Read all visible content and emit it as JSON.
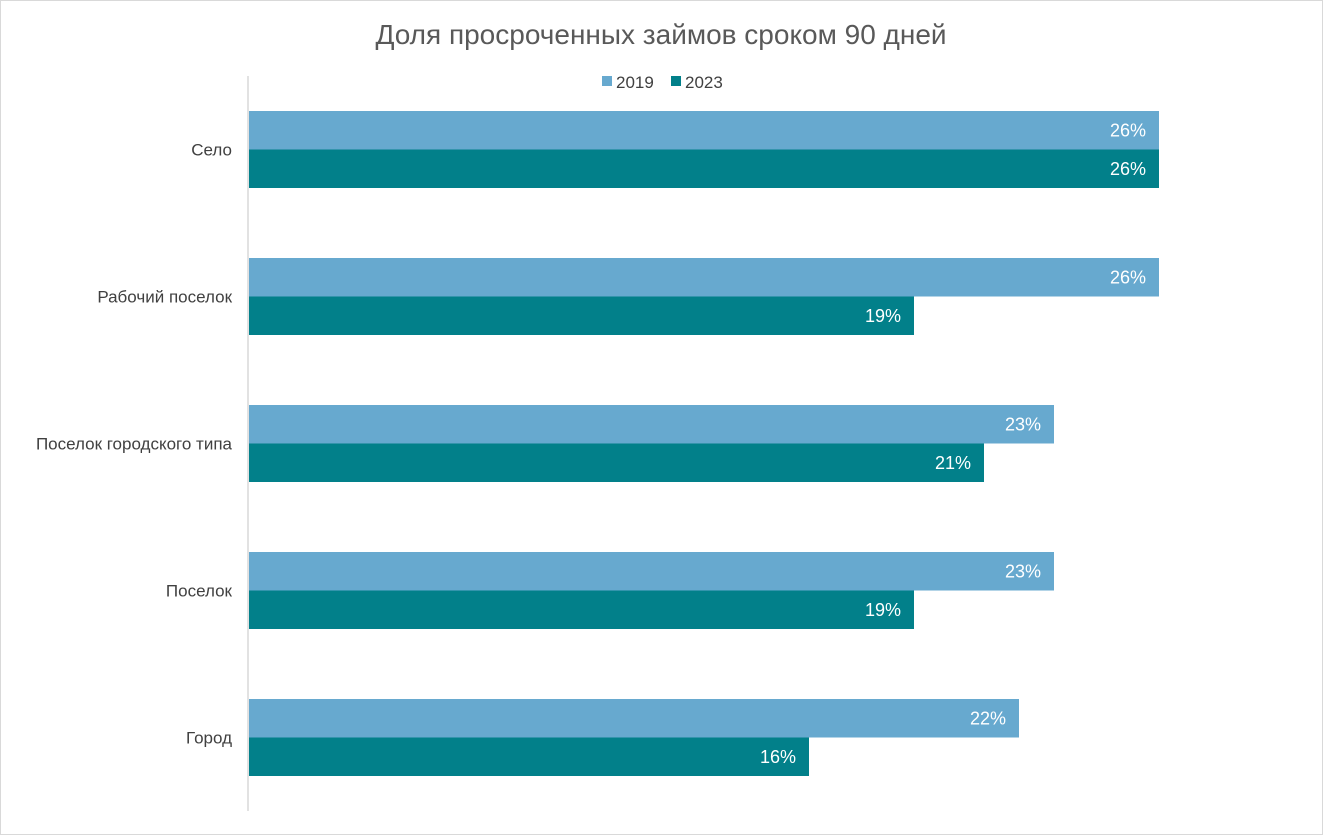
{
  "chart_data": {
    "type": "bar",
    "orientation": "horizontal",
    "title": "Доля просроченных займов сроком 90 дней",
    "categories": [
      "Село",
      "Рабочий поселок",
      "Поселок городского типа",
      "Поселок",
      "Город"
    ],
    "series": [
      {
        "name": "2019",
        "color": "#67a9cf",
        "values": [
          26,
          26,
          23,
          23,
          22
        ],
        "labels": [
          "26%",
          "26%",
          "23%",
          "23%",
          "22%"
        ]
      },
      {
        "name": "2023",
        "color": "#02808a",
        "values": [
          26,
          19,
          21,
          19,
          16
        ],
        "labels": [
          "26%",
          "19%",
          "21%",
          "19%",
          "16%"
        ]
      }
    ],
    "value_unit": "%",
    "xlim": [
      0,
      26
    ],
    "grid": false,
    "legend_position": "top"
  }
}
